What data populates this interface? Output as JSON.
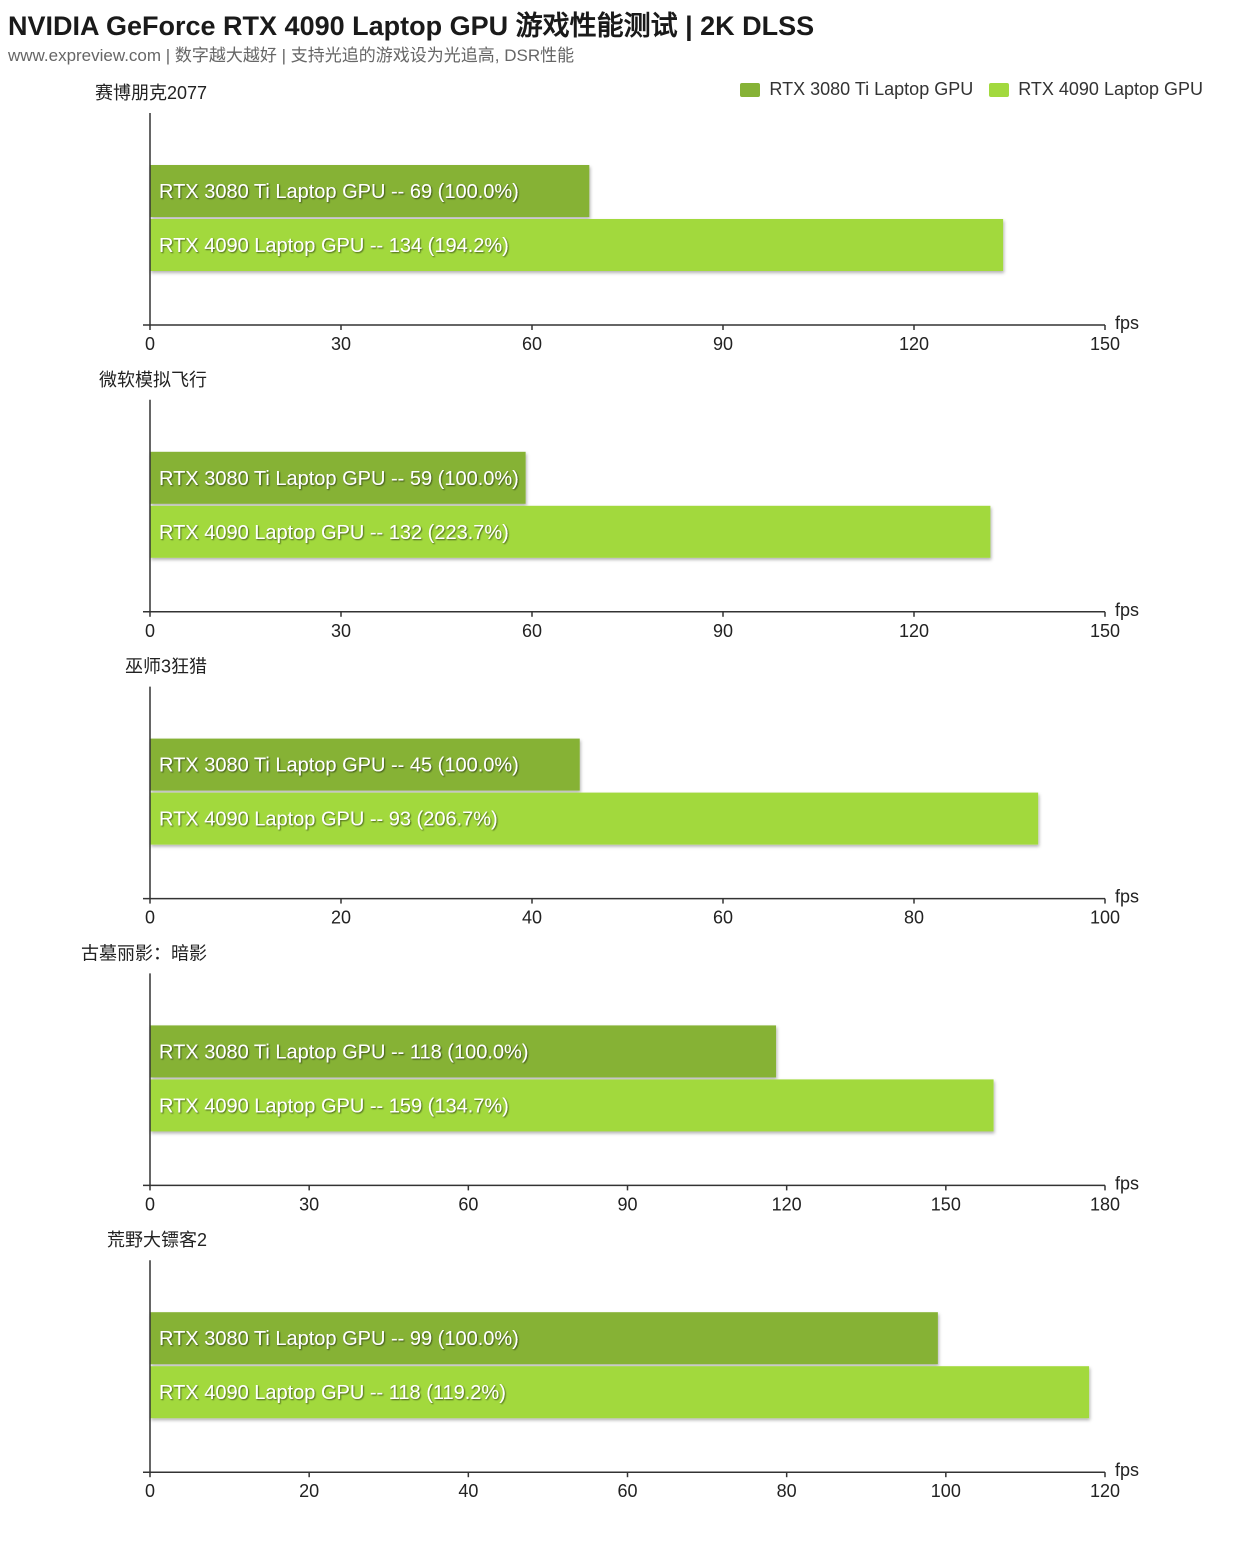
{
  "header": {
    "title": "NVIDIA GeForce RTX 4090 Laptop GPU 游戏性能测试 | 2K DLSS",
    "subtitle": "www.expreview.com | 数字越大越好 | 支持光追的游戏设为光追高, DSR性能"
  },
  "legend": [
    {
      "label": "RTX 3080 Ti Laptop GPU",
      "color": "#86b236"
    },
    {
      "label": "RTX 4090 Laptop GPU",
      "color": "#a2d93e"
    }
  ],
  "chart_data": [
    {
      "type": "bar",
      "title": "赛博朋克2077",
      "unit": "fps",
      "xlim": [
        0,
        150
      ],
      "ticks": [
        0,
        30,
        60,
        90,
        120,
        150
      ],
      "series": [
        {
          "name": "RTX 3080 Ti Laptop GPU",
          "value": 69,
          "label": "RTX 3080 Ti Laptop GPU  --  69 (100.0%)"
        },
        {
          "name": "RTX 4090 Laptop GPU",
          "value": 134,
          "label": "RTX 4090 Laptop GPU  --  134 (194.2%)"
        }
      ]
    },
    {
      "type": "bar",
      "title": "微软模拟飞行",
      "unit": "fps",
      "xlim": [
        0,
        150
      ],
      "ticks": [
        0,
        30,
        60,
        90,
        120,
        150
      ],
      "series": [
        {
          "name": "RTX 3080 Ti Laptop GPU",
          "value": 59,
          "label": "RTX 3080 Ti Laptop GPU  --  59 (100.0%)"
        },
        {
          "name": "RTX 4090 Laptop GPU",
          "value": 132,
          "label": "RTX 4090 Laptop GPU  --  132 (223.7%)"
        }
      ]
    },
    {
      "type": "bar",
      "title": "巫师3狂猎",
      "unit": "fps",
      "xlim": [
        0,
        100
      ],
      "ticks": [
        0,
        20,
        40,
        60,
        80,
        100
      ],
      "series": [
        {
          "name": "RTX 3080 Ti Laptop GPU",
          "value": 45,
          "label": "RTX 3080 Ti Laptop GPU  --  45 (100.0%)"
        },
        {
          "name": "RTX 4090 Laptop GPU",
          "value": 93,
          "label": "RTX 4090 Laptop GPU  --  93 (206.7%)"
        }
      ]
    },
    {
      "type": "bar",
      "title": "古墓丽影：暗影",
      "unit": "fps",
      "xlim": [
        0,
        180
      ],
      "ticks": [
        0,
        30,
        60,
        90,
        120,
        150,
        180
      ],
      "series": [
        {
          "name": "RTX 3080 Ti Laptop GPU",
          "value": 118,
          "label": "RTX 3080 Ti Laptop GPU  --  118 (100.0%)"
        },
        {
          "name": "RTX 4090 Laptop GPU",
          "value": 159,
          "label": "RTX 4090 Laptop GPU  --  159 (134.7%)"
        }
      ]
    },
    {
      "type": "bar",
      "title": "荒野大镖客2",
      "unit": "fps",
      "xlim": [
        0,
        120
      ],
      "ticks": [
        0,
        20,
        40,
        60,
        80,
        100,
        120
      ],
      "series": [
        {
          "name": "RTX 3080 Ti Laptop GPU",
          "value": 99,
          "label": "RTX 3080 Ti Laptop GPU  --  99 (100.0%)"
        },
        {
          "name": "RTX 4090 Laptop GPU",
          "value": 118,
          "label": "RTX 4090 Laptop GPU  --  118 (119.2%)"
        }
      ]
    }
  ]
}
